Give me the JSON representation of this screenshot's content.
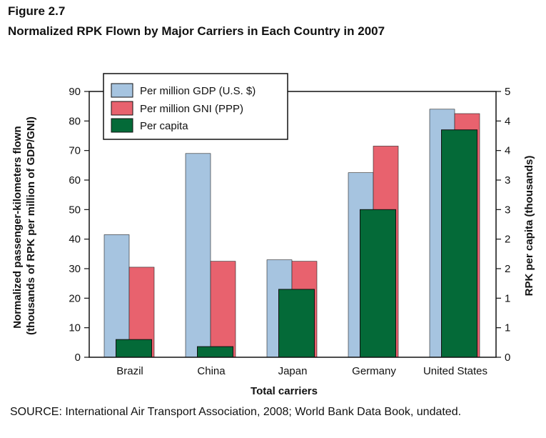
{
  "figure": {
    "label": "Figure 2.7",
    "title": "Normalized RPK Flown by Major Carriers in Each Country in 2007",
    "source": "SOURCE: International Air Transport Association, 2008; World Bank Data Book, undated."
  },
  "chart_data": {
    "type": "bar",
    "title": "Normalized RPK Flown by Major Carriers in Each Country in 2007",
    "xlabel": "Total carriers",
    "ylabel": "Normalized passenger-kilometers flown (thousands of RPK per million of GDP/GNI)",
    "y2label": "RPK per capita (thousands)",
    "categories": [
      "Brazil",
      "China",
      "Japan",
      "Germany",
      "United States"
    ],
    "ylim": [
      0,
      90
    ],
    "yticks": [
      0,
      10,
      20,
      30,
      40,
      50,
      60,
      70,
      80,
      90
    ],
    "y2lim": [
      0,
      4.5
    ],
    "y2ticks": [
      {
        "value": 0,
        "label": "0"
      },
      {
        "value": 0.5,
        "label": "1"
      },
      {
        "value": 1.0,
        "label": "1"
      },
      {
        "value": 1.5,
        "label": "2"
      },
      {
        "value": 2.0,
        "label": "2"
      },
      {
        "value": 2.5,
        "label": "3"
      },
      {
        "value": 3.0,
        "label": "3"
      },
      {
        "value": 3.5,
        "label": "4"
      },
      {
        "value": 4.0,
        "label": "4"
      },
      {
        "value": 4.5,
        "label": "5"
      }
    ],
    "series": [
      {
        "name": "Per million GDP (U.S. $)",
        "axis": "left",
        "color": "#a6c4e0",
        "values": [
          41.5,
          69,
          33,
          62.5,
          84
        ]
      },
      {
        "name": "Per million GNI (PPP)",
        "axis": "left",
        "color": "#e8626e",
        "values": [
          30.5,
          32.5,
          32.5,
          71.5,
          82.5
        ]
      },
      {
        "name": "Per capita",
        "axis": "right",
        "color": "#046a38",
        "values": [
          0.3,
          0.18,
          1.15,
          2.5,
          3.85
        ]
      }
    ],
    "legend": "top-left",
    "grid": false
  }
}
